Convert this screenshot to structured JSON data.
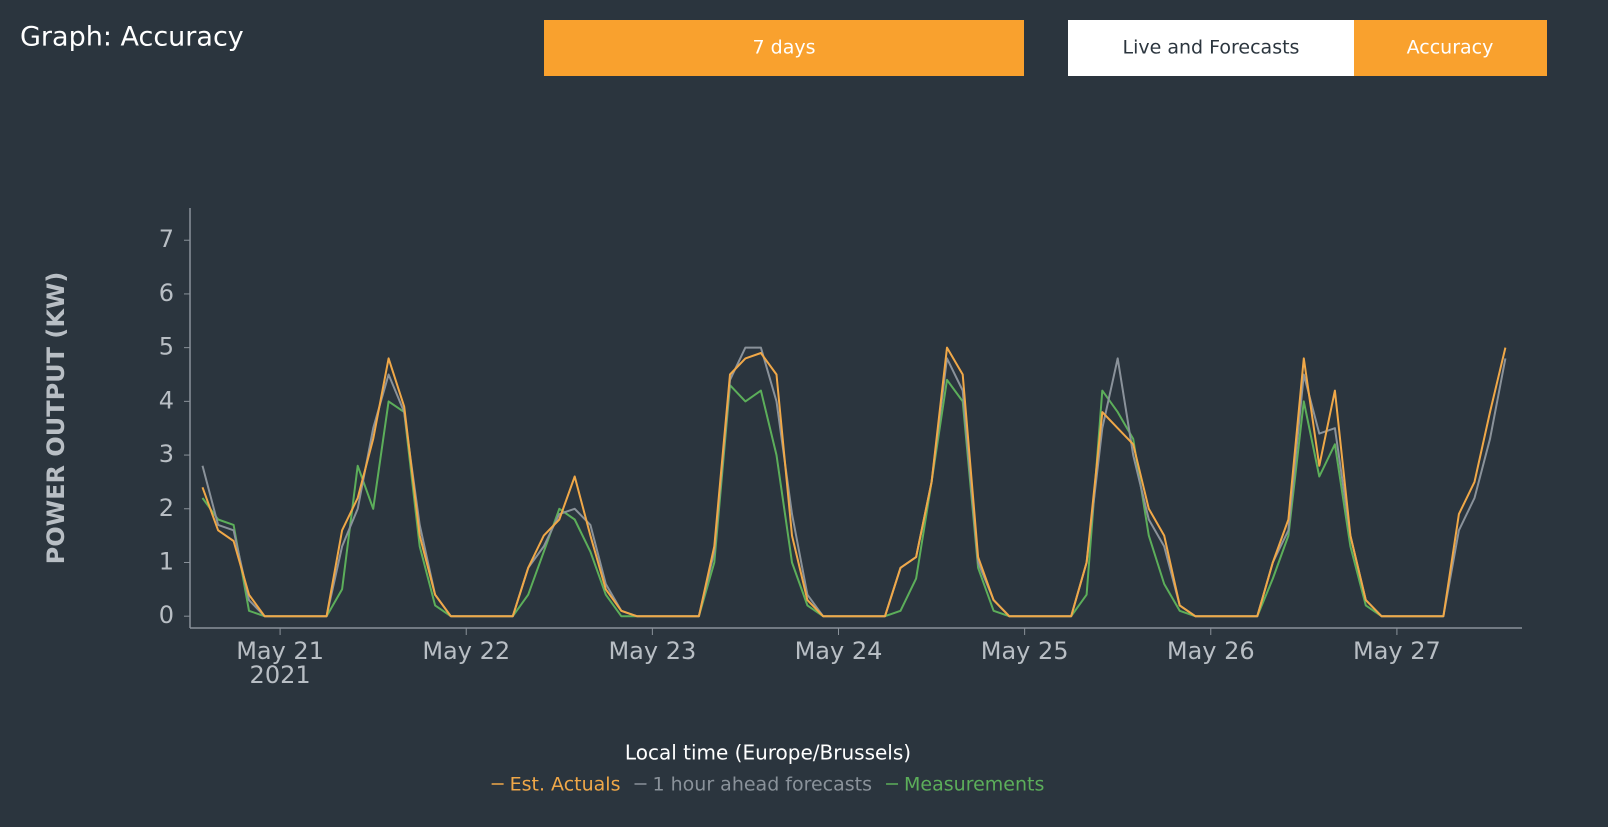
{
  "header": {
    "title": "Graph: Accuracy"
  },
  "buttons": {
    "range": "7 days",
    "tabs": [
      "Live and Forecasts",
      "Accuracy"
    ],
    "active_tab": 1
  },
  "chart_data": {
    "type": "line",
    "x_label": "Local time (Europe/Brussels)",
    "y_label": "POWER OUTPUT (KW)",
    "x": [
      20.583,
      20.667,
      20.75,
      20.833,
      20.917,
      21,
      21.083,
      21.167,
      21.25,
      21.333,
      21.417,
      21.5,
      21.583,
      21.667,
      21.75,
      21.833,
      21.917,
      22,
      22.083,
      22.167,
      22.25,
      22.333,
      22.417,
      22.5,
      22.583,
      22.667,
      22.75,
      22.833,
      22.917,
      23,
      23.083,
      23.167,
      23.25,
      23.333,
      23.417,
      23.5,
      23.583,
      23.667,
      23.75,
      23.833,
      23.917,
      24,
      24.083,
      24.167,
      24.25,
      24.333,
      24.417,
      24.5,
      24.583,
      24.667,
      24.75,
      24.833,
      24.917,
      25,
      25.083,
      25.167,
      25.25,
      25.333,
      25.417,
      25.5,
      25.583,
      25.667,
      25.75,
      25.833,
      25.917,
      26,
      26.083,
      26.167,
      26.25,
      26.333,
      26.417,
      26.5,
      26.583,
      26.667,
      26.75,
      26.833,
      26.917,
      27,
      27.083,
      27.167,
      27.25,
      27.333,
      27.417,
      27.5,
      27.583
    ],
    "xlim": [
      20.516,
      27.672
    ],
    "xticks": [
      {
        "value": 21,
        "label": "May 21",
        "sublabel": "2021"
      },
      {
        "value": 22,
        "label": "May 22"
      },
      {
        "value": 23,
        "label": "May 23"
      },
      {
        "value": 24,
        "label": "May 24"
      },
      {
        "value": 25,
        "label": "May 25"
      },
      {
        "value": 26,
        "label": "May 26"
      },
      {
        "value": 27,
        "label": "May 27"
      }
    ],
    "ylim": [
      -0.22,
      7.6
    ],
    "yticks": [
      0,
      1,
      2,
      3,
      4,
      5,
      6,
      7
    ],
    "series": [
      {
        "name": "Est. Actuals",
        "color": "#f0a848",
        "values": [
          2.4,
          1.6,
          1.4,
          0.4,
          0,
          0,
          0,
          0,
          0,
          1.6,
          2.2,
          3.3,
          4.8,
          3.9,
          1.5,
          0.4,
          0,
          0,
          0,
          0,
          0,
          0.9,
          1.5,
          1.8,
          2.6,
          1.5,
          0.5,
          0.1,
          0,
          0,
          0,
          0,
          0,
          1.3,
          4.5,
          4.8,
          4.9,
          4.5,
          1.5,
          0.3,
          0,
          0,
          0,
          0,
          0,
          0.9,
          1.1,
          2.5,
          5.0,
          4.5,
          1.1,
          0.3,
          0,
          0,
          0,
          0,
          0,
          1.0,
          3.8,
          3.5,
          3.2,
          2.0,
          1.5,
          0.2,
          0,
          0,
          0,
          0,
          0,
          1.0,
          1.8,
          4.8,
          2.8,
          4.2,
          1.5,
          0.3,
          0,
          0,
          0,
          0,
          0,
          1.9,
          2.5,
          3.8,
          5.0
        ]
      },
      {
        "name": "1 hour ahead forecasts",
        "color": "#8a929a",
        "values": [
          2.8,
          1.7,
          1.6,
          0.3,
          0,
          0,
          0,
          0,
          0,
          1.3,
          2.0,
          3.5,
          4.5,
          3.8,
          1.7,
          0.4,
          0,
          0,
          0,
          0,
          0,
          0.9,
          1.3,
          1.9,
          2.0,
          1.7,
          0.6,
          0.1,
          0,
          0,
          0,
          0,
          0,
          1.2,
          4.4,
          5.0,
          5.0,
          4.0,
          1.9,
          0.4,
          0,
          0,
          0,
          0,
          0,
          0.9,
          1.1,
          2.5,
          4.8,
          4.2,
          1.0,
          0.3,
          0,
          0,
          0,
          0,
          0,
          1.0,
          3.5,
          4.8,
          3.0,
          1.8,
          1.3,
          0.2,
          0,
          0,
          0,
          0,
          0,
          1.0,
          1.6,
          4.5,
          3.4,
          3.5,
          1.5,
          0.3,
          0,
          0,
          0,
          0,
          0,
          1.6,
          2.2,
          3.3,
          4.8
        ]
      },
      {
        "name": "Measurements",
        "color": "#5cae5a",
        "values": [
          2.2,
          1.8,
          1.7,
          0.1,
          0,
          0,
          0,
          0,
          0,
          0.5,
          2.8,
          2.0,
          4.0,
          3.8,
          1.3,
          0.2,
          0,
          0,
          0,
          0,
          0,
          0.4,
          1.2,
          2.0,
          1.8,
          1.2,
          0.4,
          0,
          0,
          0,
          0,
          0,
          0,
          1.0,
          4.3,
          4.0,
          4.2,
          3.0,
          1.0,
          0.2,
          0,
          0,
          0,
          0,
          0,
          0.1,
          0.7,
          2.5,
          4.4,
          4.0,
          0.9,
          0.1,
          0,
          0,
          0,
          0,
          0,
          0.4,
          4.2,
          3.8,
          3.3,
          1.5,
          0.6,
          0.1,
          0,
          0,
          0,
          0,
          0,
          0.7,
          1.5,
          4.0,
          2.6,
          3.2,
          1.3,
          0.2,
          0,
          0,
          0,
          0,
          0,
          null,
          null,
          null,
          null
        ]
      }
    ]
  }
}
